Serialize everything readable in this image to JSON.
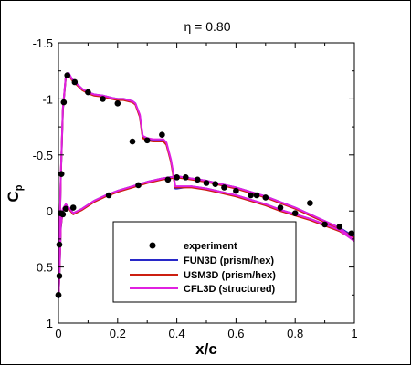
{
  "chart_data": {
    "type": "line",
    "title": "η = 0.80",
    "xlabel": "x/c",
    "ylabel": "C",
    "ylabel_subscript": "p",
    "xlim": [
      0,
      1
    ],
    "ylim_inverted": [
      -1.5,
      1
    ],
    "x_ticks": [
      0,
      0.2,
      0.4,
      0.6,
      0.8,
      1
    ],
    "x_tick_labels": [
      "0",
      "0.2",
      "0.4",
      "0.6",
      "0.8",
      "1"
    ],
    "y_ticks": [
      -1.5,
      -1,
      -0.5,
      0,
      0.5,
      1
    ],
    "y_tick_labels": [
      "-1.5",
      "-1",
      "-0.5",
      "0",
      "0.5",
      "1"
    ],
    "grid": false,
    "legend_position": "bottom-center",
    "series": [
      {
        "name": "experiment",
        "kind": "scatter",
        "color": "#000000",
        "x": [
          0.0,
          0.003,
          0.01,
          0.018,
          0.03,
          0.055,
          0.1,
          0.15,
          0.2,
          0.25,
          0.3,
          0.35,
          0.0,
          0.003,
          0.007,
          0.015,
          0.025,
          0.05,
          0.17,
          0.27,
          0.37,
          0.4,
          0.43,
          0.47,
          0.5,
          0.53,
          0.56,
          0.6,
          0.65,
          0.67,
          0.7,
          0.75,
          0.8,
          0.85,
          0.9,
          0.95,
          0.99
        ],
        "y": [
          0.75,
          0.3,
          -0.33,
          -0.97,
          -1.21,
          -1.15,
          -1.06,
          -1.0,
          -0.96,
          -0.62,
          -0.63,
          -0.68,
          0.75,
          0.58,
          0.02,
          0.03,
          -0.02,
          -0.03,
          -0.14,
          -0.23,
          -0.28,
          -0.3,
          -0.3,
          -0.28,
          -0.25,
          -0.24,
          -0.21,
          -0.18,
          -0.14,
          -0.14,
          -0.12,
          -0.03,
          0.02,
          -0.07,
          0.12,
          0.14,
          0.2
        ]
      },
      {
        "name": "FUN3D (prism/hex)",
        "kind": "line",
        "color": "#2828c8",
        "upper": {
          "x": [
            0.0,
            0.003,
            0.008,
            0.015,
            0.025,
            0.035,
            0.045,
            0.06,
            0.08,
            0.1,
            0.12,
            0.15,
            0.18,
            0.2,
            0.22,
            0.25,
            0.26,
            0.275,
            0.285,
            0.3,
            0.32,
            0.34,
            0.355,
            0.365,
            0.38,
            0.39,
            0.395,
            0.4,
            0.45,
            0.5,
            0.55,
            0.6,
            0.65,
            0.7,
            0.75,
            0.8,
            0.85,
            0.9,
            0.95,
            1.0
          ],
          "y": [
            0.78,
            0.35,
            -0.3,
            -0.9,
            -1.2,
            -1.23,
            -1.18,
            -1.14,
            -1.09,
            -1.06,
            -1.04,
            -1.03,
            -1.01,
            -1.0,
            -1.0,
            -0.98,
            -0.96,
            -0.85,
            -0.66,
            -0.64,
            -0.63,
            -0.63,
            -0.63,
            -0.6,
            -0.45,
            -0.3,
            -0.2,
            -0.2,
            -0.22,
            -0.2,
            -0.17,
            -0.14,
            -0.1,
            -0.06,
            -0.01,
            0.03,
            0.07,
            0.12,
            0.17,
            0.25
          ]
        },
        "lower": {
          "x": [
            0.0,
            0.003,
            0.008,
            0.015,
            0.025,
            0.035,
            0.05,
            0.08,
            0.12,
            0.16,
            0.2,
            0.25,
            0.3,
            0.35,
            0.4,
            0.45,
            0.5,
            0.55,
            0.6,
            0.65,
            0.7,
            0.75,
            0.8,
            0.85,
            0.9,
            0.95,
            1.0
          ],
          "y": [
            0.78,
            0.6,
            0.15,
            -0.02,
            -0.06,
            -0.03,
            0.02,
            -0.02,
            -0.09,
            -0.14,
            -0.18,
            -0.22,
            -0.26,
            -0.29,
            -0.31,
            -0.29,
            -0.27,
            -0.24,
            -0.21,
            -0.17,
            -0.13,
            -0.08,
            -0.03,
            0.03,
            0.09,
            0.15,
            0.23
          ]
        }
      },
      {
        "name": "USM3D (prism/hex)",
        "kind": "line",
        "color": "#cc1f10",
        "upper": {
          "x": [
            0.0,
            0.003,
            0.008,
            0.015,
            0.025,
            0.035,
            0.045,
            0.06,
            0.08,
            0.1,
            0.12,
            0.15,
            0.18,
            0.2,
            0.22,
            0.25,
            0.26,
            0.275,
            0.285,
            0.3,
            0.32,
            0.34,
            0.355,
            0.365,
            0.38,
            0.39,
            0.395,
            0.4,
            0.45,
            0.5,
            0.55,
            0.6,
            0.65,
            0.7,
            0.75,
            0.8,
            0.85,
            0.9,
            0.95,
            1.0
          ],
          "y": [
            0.77,
            0.34,
            -0.31,
            -0.91,
            -1.2,
            -1.22,
            -1.17,
            -1.13,
            -1.08,
            -1.05,
            -1.03,
            -1.02,
            -1.0,
            -0.99,
            -0.99,
            -0.97,
            -0.95,
            -0.84,
            -0.65,
            -0.63,
            -0.62,
            -0.62,
            -0.62,
            -0.59,
            -0.44,
            -0.29,
            -0.21,
            -0.21,
            -0.21,
            -0.19,
            -0.16,
            -0.13,
            -0.09,
            -0.05,
            0.0,
            0.04,
            0.08,
            0.13,
            0.18,
            0.26
          ]
        },
        "lower": {
          "x": [
            0.0,
            0.003,
            0.008,
            0.015,
            0.025,
            0.035,
            0.05,
            0.08,
            0.12,
            0.16,
            0.2,
            0.25,
            0.3,
            0.35,
            0.4,
            0.45,
            0.5,
            0.55,
            0.6,
            0.65,
            0.7,
            0.75,
            0.8,
            0.85,
            0.9,
            0.95,
            1.0
          ],
          "y": [
            0.77,
            0.59,
            0.14,
            -0.01,
            -0.05,
            -0.02,
            0.03,
            -0.01,
            -0.08,
            -0.13,
            -0.17,
            -0.21,
            -0.25,
            -0.28,
            -0.3,
            -0.28,
            -0.26,
            -0.23,
            -0.2,
            -0.16,
            -0.12,
            -0.07,
            -0.02,
            0.04,
            0.1,
            0.16,
            0.24
          ]
        }
      },
      {
        "name": "CFL3D (structured)",
        "kind": "line",
        "color": "#e020e0",
        "upper": {
          "x": [
            0.0,
            0.003,
            0.008,
            0.015,
            0.025,
            0.035,
            0.045,
            0.06,
            0.08,
            0.1,
            0.12,
            0.15,
            0.18,
            0.2,
            0.22,
            0.25,
            0.26,
            0.275,
            0.285,
            0.3,
            0.32,
            0.34,
            0.355,
            0.365,
            0.38,
            0.39,
            0.395,
            0.4,
            0.45,
            0.5,
            0.55,
            0.6,
            0.65,
            0.7,
            0.75,
            0.8,
            0.85,
            0.9,
            0.95,
            1.0
          ],
          "y": [
            0.76,
            0.33,
            -0.32,
            -0.92,
            -1.21,
            -1.23,
            -1.18,
            -1.14,
            -1.09,
            -1.06,
            -1.04,
            -1.03,
            -1.01,
            -1.0,
            -1.0,
            -0.98,
            -0.96,
            -0.86,
            -0.67,
            -0.65,
            -0.64,
            -0.64,
            -0.64,
            -0.61,
            -0.46,
            -0.31,
            -0.22,
            -0.22,
            -0.22,
            -0.2,
            -0.17,
            -0.14,
            -0.1,
            -0.06,
            -0.01,
            0.03,
            0.07,
            0.12,
            0.17,
            0.27
          ]
        },
        "lower": {
          "x": [
            0.0,
            0.003,
            0.008,
            0.015,
            0.025,
            0.035,
            0.05,
            0.08,
            0.12,
            0.16,
            0.2,
            0.25,
            0.3,
            0.35,
            0.4,
            0.45,
            0.5,
            0.55,
            0.6,
            0.65,
            0.7,
            0.75,
            0.8,
            0.85,
            0.9,
            0.95,
            1.0
          ],
          "y": [
            0.76,
            0.58,
            0.13,
            -0.02,
            -0.06,
            -0.03,
            0.02,
            -0.02,
            -0.09,
            -0.14,
            -0.18,
            -0.22,
            -0.26,
            -0.29,
            -0.31,
            -0.29,
            -0.27,
            -0.24,
            -0.21,
            -0.17,
            -0.13,
            -0.08,
            -0.03,
            0.03,
            0.09,
            0.15,
            0.26
          ]
        }
      }
    ]
  }
}
